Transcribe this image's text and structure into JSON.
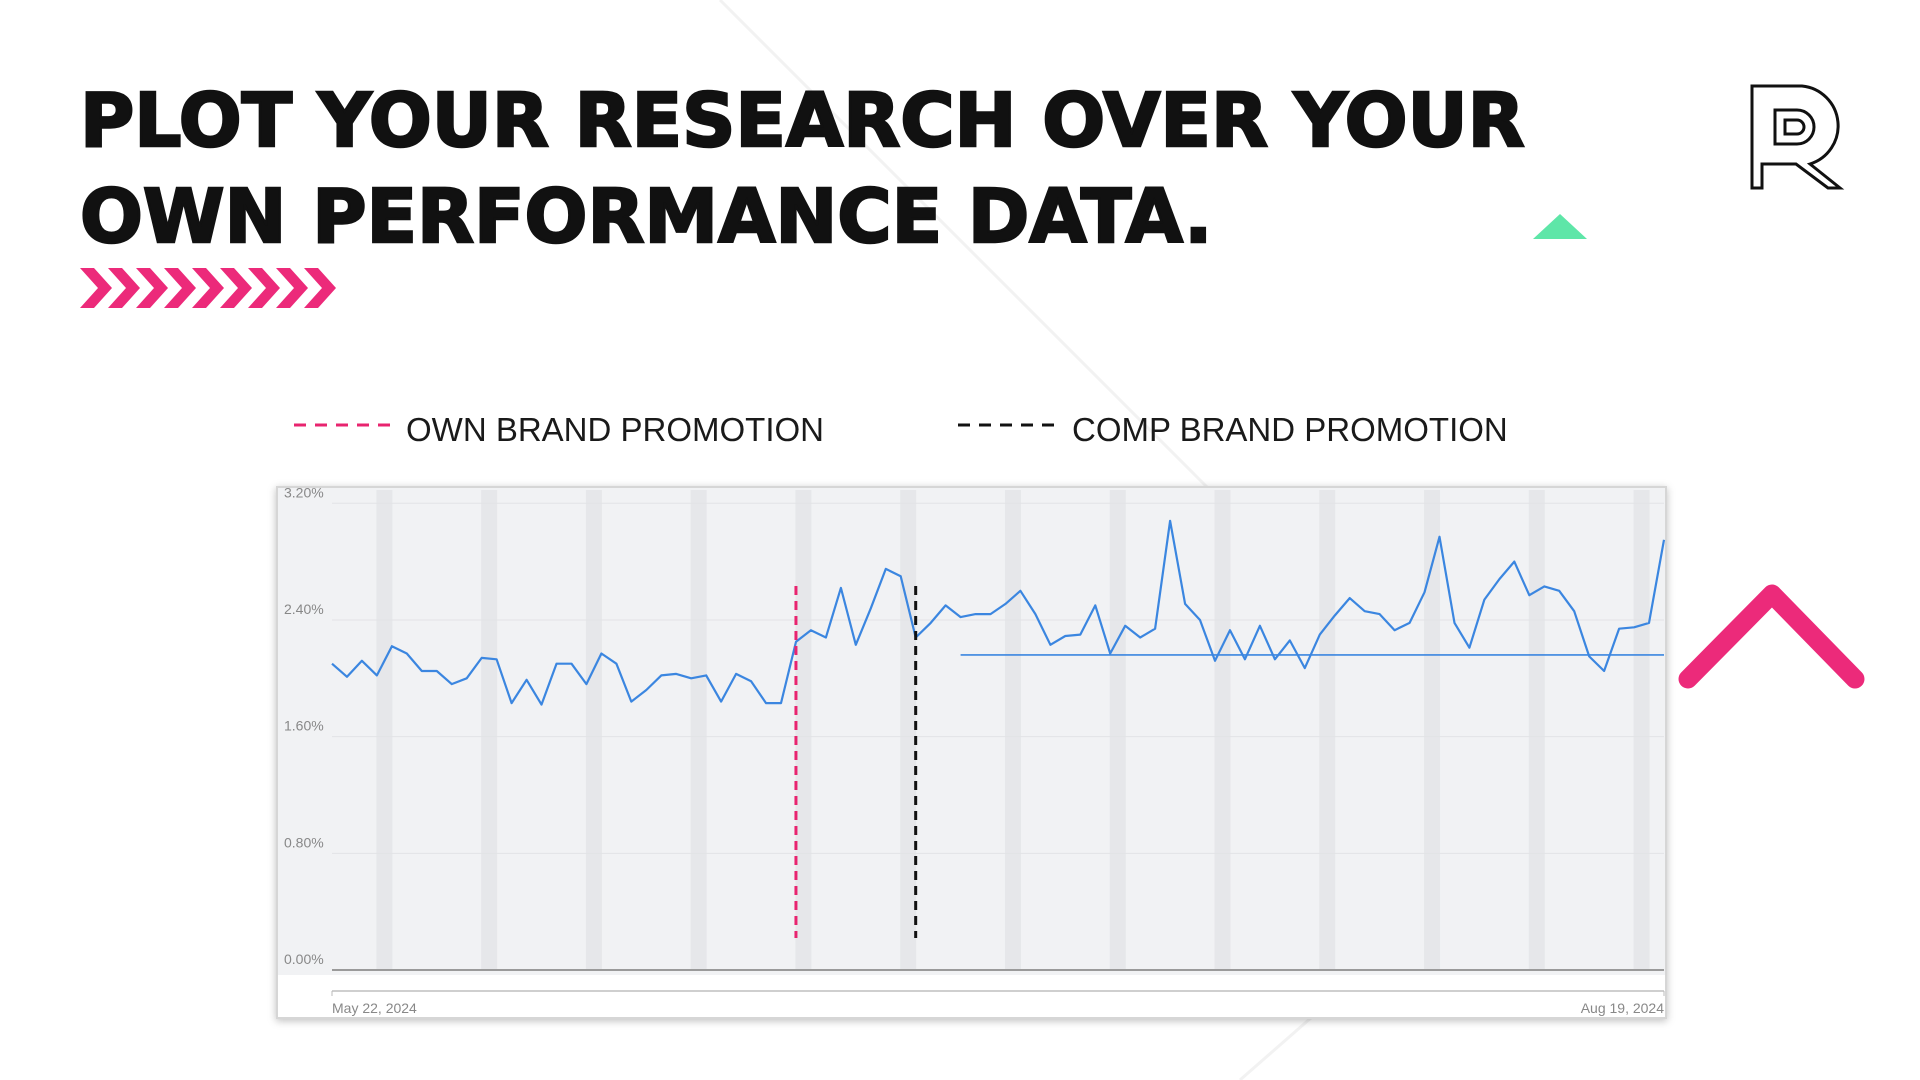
{
  "slide": {
    "title_lines": [
      "PLOT YOUR RESEARCH OVER YOUR",
      "OWN PERFORMANCE DATA."
    ]
  },
  "chart_data": {
    "type": "line",
    "x": [
      "2024-05-22",
      "2024-05-23",
      "2024-05-24",
      "2024-05-25",
      "2024-05-26",
      "2024-05-27",
      "2024-05-28",
      "2024-05-29",
      "2024-05-30",
      "2024-05-31",
      "2024-06-01",
      "2024-06-02",
      "2024-06-03",
      "2024-06-04",
      "2024-06-05",
      "2024-06-06",
      "2024-06-07",
      "2024-06-08",
      "2024-06-09",
      "2024-06-10",
      "2024-06-11",
      "2024-06-12",
      "2024-06-13",
      "2024-06-14",
      "2024-06-15",
      "2024-06-16",
      "2024-06-17",
      "2024-06-18",
      "2024-06-19",
      "2024-06-20",
      "2024-06-21",
      "2024-06-22",
      "2024-06-23",
      "2024-06-24",
      "2024-06-25",
      "2024-06-26",
      "2024-06-27",
      "2024-06-28",
      "2024-06-29",
      "2024-06-30",
      "2024-07-01",
      "2024-07-02",
      "2024-07-03",
      "2024-07-04",
      "2024-07-05",
      "2024-07-06",
      "2024-07-07",
      "2024-07-08",
      "2024-07-09",
      "2024-07-10",
      "2024-07-11",
      "2024-07-12",
      "2024-07-13",
      "2024-07-14",
      "2024-07-15",
      "2024-07-16",
      "2024-07-17",
      "2024-07-18",
      "2024-07-19",
      "2024-07-20",
      "2024-07-21",
      "2024-07-22",
      "2024-07-23",
      "2024-07-24",
      "2024-07-25",
      "2024-07-26",
      "2024-07-27",
      "2024-07-28",
      "2024-07-29",
      "2024-07-30",
      "2024-07-31",
      "2024-08-01",
      "2024-08-02",
      "2024-08-03",
      "2024-08-04",
      "2024-08-05",
      "2024-08-06",
      "2024-08-07",
      "2024-08-08",
      "2024-08-09",
      "2024-08-10",
      "2024-08-11",
      "2024-08-12",
      "2024-08-13",
      "2024-08-14",
      "2024-08-15",
      "2024-08-16",
      "2024-08-17",
      "2024-08-18",
      "2024-08-19"
    ],
    "series": [
      {
        "color": "#3b86e0",
        "values": [
          2.1,
          2.01,
          2.12,
          2.02,
          2.22,
          2.17,
          2.05,
          2.05,
          1.96,
          2.0,
          2.14,
          2.13,
          1.83,
          1.99,
          1.82,
          2.1,
          2.1,
          1.96,
          2.17,
          2.1,
          1.84,
          1.92,
          2.02,
          2.03,
          2.0,
          2.02,
          1.84,
          2.03,
          1.98,
          1.83,
          1.83,
          2.25,
          2.33,
          2.28,
          2.62,
          2.23,
          2.48,
          2.75,
          2.7,
          2.28,
          2.38,
          2.5,
          2.42,
          2.44,
          2.44,
          2.51,
          2.6,
          2.44,
          2.23,
          2.29,
          2.3,
          2.5,
          2.17,
          2.36,
          2.28,
          2.34,
          3.08,
          2.51,
          2.4,
          2.12,
          2.33,
          2.13,
          2.36,
          2.13,
          2.26,
          2.07,
          2.3,
          2.43,
          2.55,
          2.46,
          2.44,
          2.33,
          2.38,
          2.59,
          2.97,
          2.38,
          2.21,
          2.54,
          2.68,
          2.8,
          2.57,
          2.63,
          2.6,
          2.46,
          2.15,
          2.05,
          2.34,
          2.35,
          2.38,
          2.95
        ]
      }
    ],
    "reference_line": {
      "value": 2.16,
      "from": "2024-07-03",
      "color": "#3b86e0"
    },
    "events": [
      {
        "name": "OWN BRAND PROMOTION",
        "x": "2024-06-22",
        "color": "#e8246f"
      },
      {
        "name": "COMP BRAND PROMOTION",
        "x": "2024-06-30",
        "color": "#111111"
      }
    ],
    "xlim": [
      "2024-05-22",
      "2024-08-19"
    ],
    "xticks": [
      {
        "value": "2024-05-22",
        "label": "May 22, 2024"
      },
      {
        "value": "2024-08-19",
        "label": "Aug 19, 2024"
      }
    ],
    "ylim": [
      0,
      3.25
    ],
    "yticks": [
      {
        "value": 0,
        "label": "0.00%"
      },
      {
        "value": 0.8,
        "label": "0.80%"
      },
      {
        "value": 1.6,
        "label": "1.60%"
      },
      {
        "value": 2.4,
        "label": "2.40%"
      },
      {
        "value": 3.2,
        "label": "3.20%"
      }
    ],
    "grid": true
  }
}
